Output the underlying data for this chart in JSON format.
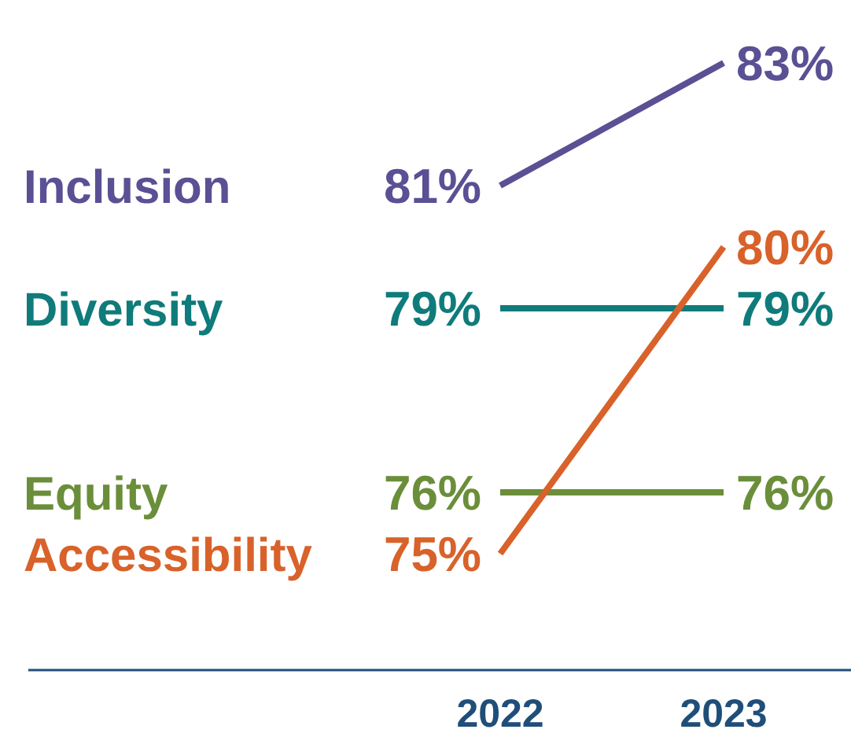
{
  "chart_data": {
    "type": "line",
    "categories": [
      "2022",
      "2023"
    ],
    "series": [
      {
        "name": "Inclusion",
        "color": "#5a5094",
        "values": [
          81,
          83
        ],
        "value_labels": [
          "81%",
          "83%"
        ]
      },
      {
        "name": "Diversity",
        "color": "#0f7b7b",
        "values": [
          79,
          79
        ],
        "value_labels": [
          "79%",
          "79%"
        ]
      },
      {
        "name": "Equity",
        "color": "#6b8e3a",
        "values": [
          76,
          76
        ],
        "value_labels": [
          "76%",
          "76%"
        ]
      },
      {
        "name": "Accessibility",
        "color": "#d8622a",
        "values": [
          75,
          80
        ],
        "value_labels": [
          "75%",
          "80%"
        ]
      }
    ],
    "legend": false,
    "grid": false,
    "marker": "none"
  }
}
